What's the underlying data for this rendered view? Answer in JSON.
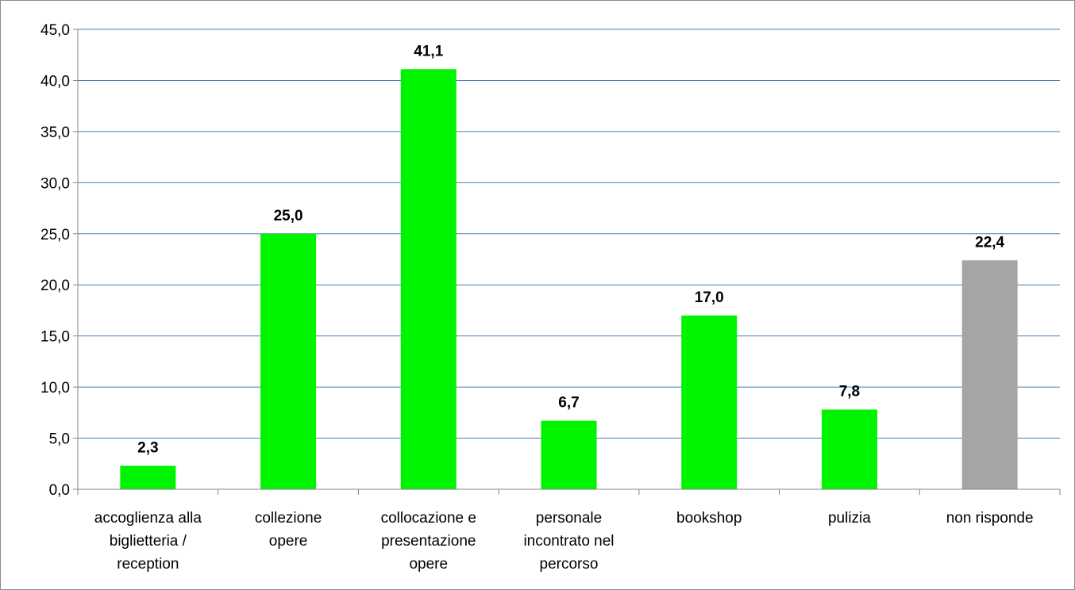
{
  "chart_data": {
    "type": "bar",
    "title": "",
    "xlabel": "",
    "ylabel": "",
    "categories": [
      [
        "accoglienza alla",
        "biglietteria /",
        "reception"
      ],
      [
        "collezione",
        "opere"
      ],
      [
        "collocazione e",
        "presentazione",
        "opere"
      ],
      [
        "personale",
        "incontrato nel",
        "percorso"
      ],
      [
        "bookshop"
      ],
      [
        "pulizia"
      ],
      [
        "non risponde"
      ]
    ],
    "values": [
      2.3,
      25.0,
      41.1,
      6.7,
      17.0,
      7.8,
      22.4
    ],
    "value_labels": [
      "2,3",
      "25,0",
      "41,1",
      "6,7",
      "17,0",
      "7,8",
      "22,4"
    ],
    "y_ticks": [
      "0,0",
      "5,0",
      "10,0",
      "15,0",
      "20,0",
      "25,0",
      "30,0",
      "35,0",
      "40,0",
      "45,0"
    ],
    "ylim": [
      0,
      45
    ],
    "y_step": 5,
    "grid": true,
    "legend": "none",
    "colors": {
      "bar": "#00f400",
      "bar_no_answer": "#a5a5a5",
      "grid": "#4a7ebb",
      "axis": "#868686"
    },
    "bar_colors": [
      "bar",
      "bar",
      "bar",
      "bar",
      "bar",
      "bar",
      "bar_no_answer"
    ]
  }
}
